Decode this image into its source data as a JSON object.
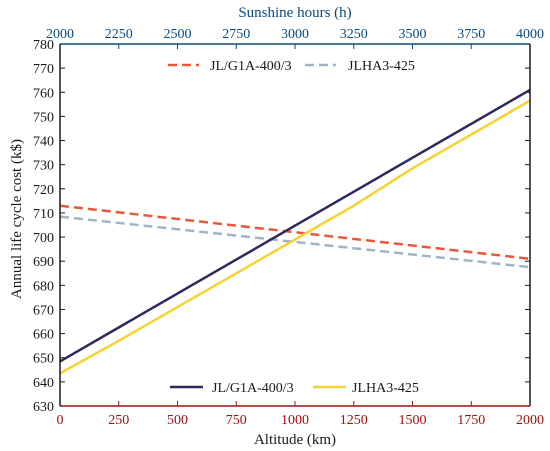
{
  "chart_data": {
    "type": "line",
    "ylabel": "Annual life cycle cost (k$)",
    "ylim": [
      630,
      780
    ],
    "yticks": [
      630,
      640,
      650,
      660,
      670,
      680,
      690,
      700,
      710,
      720,
      730,
      740,
      750,
      760,
      770,
      780
    ],
    "left_axis_color": "#1a1a1a",
    "bottom_axis": {
      "label": "Altitude (km)",
      "range": [
        0,
        2000
      ],
      "ticks": [
        0,
        250,
        500,
        750,
        1000,
        1250,
        1500,
        1750,
        2000
      ],
      "color": "#a01010"
    },
    "top_axis": {
      "label": "Sunshine hours (h)",
      "range": [
        2000,
        4000
      ],
      "ticks": [
        2000,
        2250,
        2500,
        2750,
        3000,
        3250,
        3500,
        3750,
        4000
      ],
      "color": "#0a4a7a"
    },
    "grid": false,
    "series_groups": [
      {
        "axis": "top",
        "legend_position": "top-center",
        "style": "dashed",
        "series": [
          {
            "name": "JL/G1A-400/3",
            "color": "#e8593a",
            "x": [
              2000,
              4000
            ],
            "y": [
              713,
              691
            ]
          },
          {
            "name": "JLHA3-425",
            "color": "#9fb4c8",
            "x": [
              2000,
              4000
            ],
            "y": [
              708.5,
              687.5
            ]
          }
        ]
      },
      {
        "axis": "bottom",
        "legend_position": "bottom-center",
        "style": "solid",
        "series": [
          {
            "name": "JL/G1A-400/3",
            "color": "#2e2a5e",
            "x": [
              0,
              2000
            ],
            "y": [
              648.5,
              761
            ]
          },
          {
            "name": "JLHA3-425",
            "color": "#f5d232",
            "x": [
              0,
              250,
              500,
              750,
              1000,
              1250,
              1500,
              1750,
              2000
            ],
            "y": [
              643.5,
              657,
              671,
              685,
              699,
              713,
              728.5,
              742.5,
              756.5
            ]
          }
        ]
      }
    ]
  }
}
